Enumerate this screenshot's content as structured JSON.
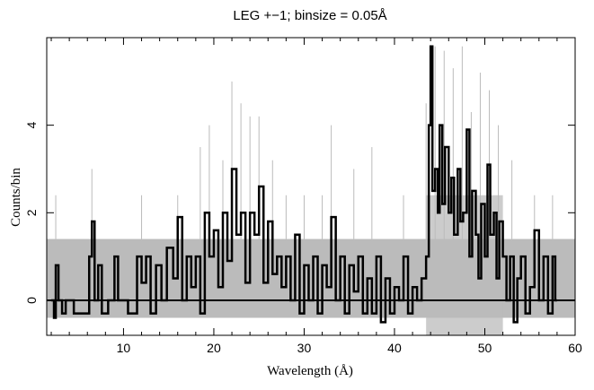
{
  "chart_data": {
    "type": "line",
    "title": "LEG +−1; binsize = 0.05Å",
    "xlabel": "Wavelength (Å)",
    "ylabel": "Counts/bin",
    "xlim": [
      1.5,
      60
    ],
    "ylim": [
      -0.8,
      6.0
    ],
    "x_ticks": [
      10,
      20,
      30,
      40,
      50,
      60
    ],
    "y_ticks": [
      0,
      2,
      4
    ],
    "grid": false,
    "series": [
      {
        "role": "binned counts (black step histogram)",
        "color": "#000000",
        "points": [
          [
            2,
            0
          ],
          [
            2.3,
            -0.4
          ],
          [
            2.5,
            0.8
          ],
          [
            2.8,
            0
          ],
          [
            3.2,
            -0.3
          ],
          [
            3.6,
            0
          ],
          [
            4.5,
            -0.3
          ],
          [
            5.5,
            -0.3
          ],
          [
            6.2,
            1
          ],
          [
            6.5,
            1.8
          ],
          [
            6.8,
            0
          ],
          [
            7.2,
            0.8
          ],
          [
            7.6,
            -0.3
          ],
          [
            8.3,
            0
          ],
          [
            9.0,
            1
          ],
          [
            9.4,
            0
          ],
          [
            10.5,
            -0.3
          ],
          [
            11.5,
            1
          ],
          [
            12.0,
            0.4
          ],
          [
            12.5,
            1
          ],
          [
            13.0,
            -0.3
          ],
          [
            13.6,
            0.8
          ],
          [
            14.2,
            0
          ],
          [
            14.8,
            1.2
          ],
          [
            15.5,
            0.5
          ],
          [
            16.0,
            1.9
          ],
          [
            16.5,
            0
          ],
          [
            17.0,
            1
          ],
          [
            17.5,
            0.3
          ],
          [
            18.0,
            1
          ],
          [
            18.5,
            -0.3
          ],
          [
            19.0,
            2.0
          ],
          [
            19.5,
            1.0
          ],
          [
            20.0,
            1.6
          ],
          [
            20.5,
            0.3
          ],
          [
            21.0,
            2.0
          ],
          [
            21.5,
            0.9
          ],
          [
            22.0,
            3.0
          ],
          [
            22.5,
            1.5
          ],
          [
            23.0,
            2.0
          ],
          [
            23.5,
            0.4
          ],
          [
            24.0,
            2.0
          ],
          [
            24.5,
            1.5
          ],
          [
            25.0,
            2.6
          ],
          [
            25.5,
            0.4
          ],
          [
            26.0,
            1.8
          ],
          [
            26.5,
            0.6
          ],
          [
            27.0,
            1.0
          ],
          [
            27.5,
            0.3
          ],
          [
            28.0,
            1.0
          ],
          [
            28.5,
            0
          ],
          [
            29.0,
            1.5
          ],
          [
            29.5,
            -0.3
          ],
          [
            30.0,
            0.8
          ],
          [
            30.5,
            0
          ],
          [
            31.0,
            1.0
          ],
          [
            31.5,
            -0.3
          ],
          [
            32.0,
            0.8
          ],
          [
            32.5,
            0.3
          ],
          [
            33.0,
            1.9
          ],
          [
            33.5,
            0
          ],
          [
            34.0,
            1.0
          ],
          [
            34.5,
            -0.3
          ],
          [
            35.0,
            0.8
          ],
          [
            35.5,
            0.2
          ],
          [
            36.0,
            1.0
          ],
          [
            36.5,
            -0.3
          ],
          [
            37.0,
            0.5
          ],
          [
            37.5,
            -0.3
          ],
          [
            38.0,
            1.0
          ],
          [
            38.5,
            -0.5
          ],
          [
            39.0,
            0.5
          ],
          [
            39.5,
            -0.3
          ],
          [
            40.0,
            0.3
          ],
          [
            40.5,
            0
          ],
          [
            41.0,
            1.0
          ],
          [
            41.5,
            -0.3
          ],
          [
            42.0,
            0.3
          ],
          [
            42.5,
            0
          ],
          [
            43.0,
            0.5
          ],
          [
            43.5,
            1.0
          ],
          [
            43.8,
            4.0
          ],
          [
            44.0,
            5.8
          ],
          [
            44.2,
            2.5
          ],
          [
            44.5,
            3.0
          ],
          [
            44.8,
            2.0
          ],
          [
            45.0,
            4.0
          ],
          [
            45.3,
            2.2
          ],
          [
            45.6,
            3.5
          ],
          [
            46.0,
            2.0
          ],
          [
            46.3,
            2.8
          ],
          [
            46.6,
            1.5
          ],
          [
            47.0,
            3.0
          ],
          [
            47.3,
            1.8
          ],
          [
            47.6,
            2.0
          ],
          [
            48.0,
            3.9
          ],
          [
            48.3,
            1.0
          ],
          [
            48.6,
            2.5
          ],
          [
            49.0,
            1.5
          ],
          [
            49.3,
            0.5
          ],
          [
            49.6,
            2.2
          ],
          [
            50.0,
            1.0
          ],
          [
            50.3,
            3.1
          ],
          [
            50.6,
            1.5
          ],
          [
            51.0,
            2.0
          ],
          [
            51.3,
            0.5
          ],
          [
            51.6,
            1.8
          ],
          [
            52.0,
            1.0
          ],
          [
            52.4,
            0
          ],
          [
            52.8,
            1.0
          ],
          [
            53.2,
            -0.5
          ],
          [
            53.6,
            0.5
          ],
          [
            54.0,
            1.0
          ],
          [
            54.5,
            -0.3
          ],
          [
            55.0,
            0.3
          ],
          [
            55.5,
            1.6
          ],
          [
            56.0,
            0
          ],
          [
            56.5,
            1.0
          ],
          [
            57.0,
            -0.3
          ],
          [
            57.5,
            1.0
          ],
          [
            57.8,
            0
          ],
          [
            58.0,
            0
          ]
        ]
      },
      {
        "role": "unbinned counts (grey)",
        "color": "#bbbbbb",
        "band": [
          -0.4,
          1.4
        ],
        "peak_region": [
          43.5,
          52.0
        ],
        "points": [
          [
            2.5,
            2.4
          ],
          [
            6.5,
            3.0
          ],
          [
            12.0,
            2.4
          ],
          [
            16.0,
            2.4
          ],
          [
            18.5,
            3.5
          ],
          [
            19.5,
            4.0
          ],
          [
            21.0,
            3.2
          ],
          [
            22.0,
            5.0
          ],
          [
            23.0,
            4.5
          ],
          [
            24.0,
            4.2
          ],
          [
            25.0,
            4.2
          ],
          [
            26.5,
            3.2
          ],
          [
            28.0,
            2.4
          ],
          [
            30.0,
            2.4
          ],
          [
            32.0,
            2.4
          ],
          [
            33.0,
            4.0
          ],
          [
            35.5,
            3.0
          ],
          [
            37.5,
            3.5
          ],
          [
            41.0,
            2.4
          ],
          [
            43.5,
            4.5
          ],
          [
            44.5,
            5.8
          ],
          [
            45.5,
            5.7
          ],
          [
            46.5,
            5.3
          ],
          [
            47.5,
            5.8
          ],
          [
            48.5,
            4.3
          ],
          [
            49.5,
            5.2
          ],
          [
            50.5,
            4.8
          ],
          [
            51.5,
            4.0
          ],
          [
            53.0,
            3.2
          ],
          [
            55.5,
            2.4
          ],
          [
            57.5,
            2.4
          ]
        ]
      }
    ]
  }
}
